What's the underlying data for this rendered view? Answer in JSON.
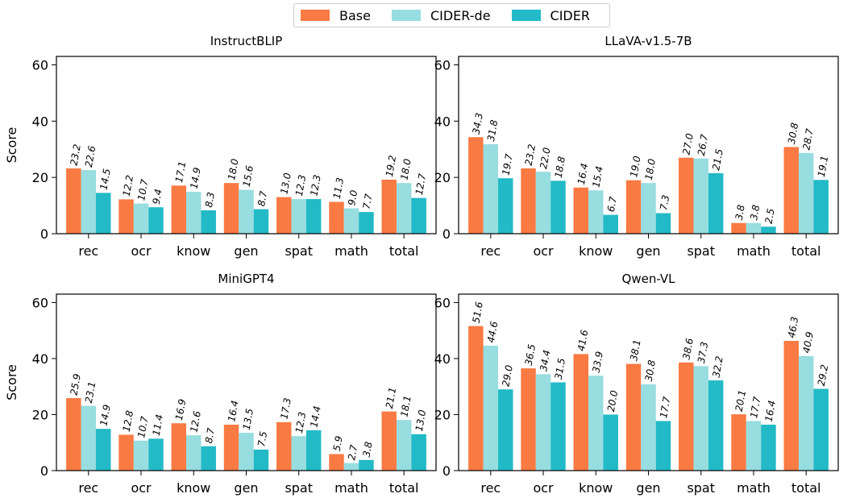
{
  "legend": {
    "items": [
      {
        "label": "Base",
        "color": "#F97A43"
      },
      {
        "label": "CIDER-de",
        "color": "#98DDE0"
      },
      {
        "label": "CIDER",
        "color": "#22BAC6"
      }
    ]
  },
  "chart_data": [
    {
      "type": "bar",
      "title": "InstructBLIP",
      "ylabel": "Score",
      "xlabel": "",
      "ylim": [
        0,
        63
      ],
      "yticks": [
        0,
        20,
        40,
        60
      ],
      "categories": [
        "rec",
        "ocr",
        "know",
        "gen",
        "spat",
        "math",
        "total"
      ],
      "series": [
        {
          "name": "Base",
          "values": [
            23.2,
            12.2,
            17.1,
            18.0,
            13.0,
            11.3,
            19.2
          ]
        },
        {
          "name": "CIDER-de",
          "values": [
            22.6,
            10.7,
            14.9,
            15.6,
            12.3,
            9.0,
            18.0
          ]
        },
        {
          "name": "CIDER",
          "values": [
            14.5,
            9.4,
            8.3,
            8.7,
            12.3,
            7.7,
            12.7
          ]
        }
      ],
      "grid": false
    },
    {
      "type": "bar",
      "title": "LLaVA-v1.5-7B",
      "ylabel": "",
      "xlabel": "",
      "ylim": [
        0,
        63
      ],
      "yticks": [
        0,
        20,
        40,
        60
      ],
      "categories": [
        "rec",
        "ocr",
        "know",
        "gen",
        "spat",
        "math",
        "total"
      ],
      "series": [
        {
          "name": "Base",
          "values": [
            34.3,
            23.2,
            16.4,
            19.0,
            27.0,
            3.8,
            30.8
          ]
        },
        {
          "name": "CIDER-de",
          "values": [
            31.8,
            22.0,
            15.4,
            18.0,
            26.7,
            3.8,
            28.7
          ]
        },
        {
          "name": "CIDER",
          "values": [
            19.7,
            18.8,
            6.7,
            7.3,
            21.5,
            2.5,
            19.1
          ]
        }
      ],
      "grid": false
    },
    {
      "type": "bar",
      "title": "MiniGPT4",
      "ylabel": "Score",
      "xlabel": "",
      "ylim": [
        0,
        63
      ],
      "yticks": [
        0,
        20,
        40,
        60
      ],
      "categories": [
        "rec",
        "ocr",
        "know",
        "gen",
        "spat",
        "math",
        "total"
      ],
      "series": [
        {
          "name": "Base",
          "values": [
            25.9,
            12.8,
            16.9,
            16.4,
            17.3,
            5.9,
            21.1
          ]
        },
        {
          "name": "CIDER-de",
          "values": [
            23.1,
            10.7,
            12.6,
            13.5,
            12.3,
            2.7,
            18.1
          ]
        },
        {
          "name": "CIDER",
          "values": [
            14.9,
            11.4,
            8.7,
            7.5,
            14.4,
            3.8,
            13.0
          ]
        }
      ],
      "grid": false
    },
    {
      "type": "bar",
      "title": "Qwen-VL",
      "ylabel": "",
      "xlabel": "",
      "ylim": [
        0,
        63
      ],
      "yticks": [
        0,
        20,
        40,
        60
      ],
      "categories": [
        "rec",
        "ocr",
        "know",
        "gen",
        "spat",
        "math",
        "total"
      ],
      "series": [
        {
          "name": "Base",
          "values": [
            51.6,
            36.5,
            41.6,
            38.1,
            38.6,
            20.1,
            46.3
          ]
        },
        {
          "name": "CIDER-de",
          "values": [
            44.6,
            34.4,
            33.9,
            30.8,
            37.3,
            17.7,
            40.9
          ]
        },
        {
          "name": "CIDER",
          "values": [
            29.0,
            31.5,
            20.0,
            17.7,
            32.2,
            16.4,
            29.2
          ]
        }
      ],
      "grid": false
    }
  ]
}
